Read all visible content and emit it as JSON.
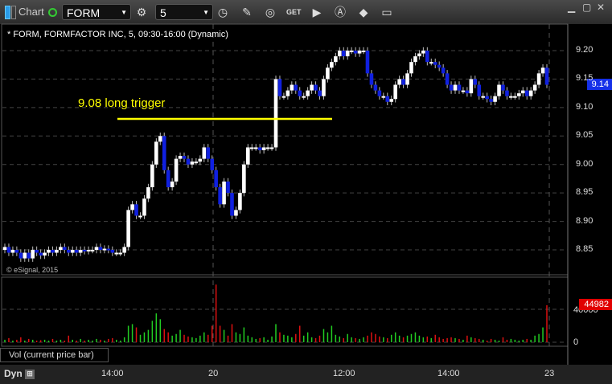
{
  "toolbar": {
    "app_label": "Chart",
    "symbol": "FORM",
    "interval": "5",
    "icons": [
      "settings-icon",
      "clock-icon",
      "pencil-icon",
      "study-icon",
      "get-icon",
      "play-icon",
      "alert-icon",
      "tag-icon",
      "comment-icon"
    ],
    "window_buttons": [
      "minimize",
      "maximize",
      "close"
    ]
  },
  "chart": {
    "title": "* FORM, FORMFACTOR INC, 5, 09:30-16:00 (Dynamic)",
    "annotation": "9.08 long trigger",
    "trigger_level": 9.08,
    "copyright": "© eSignal, 2015",
    "last_price": "9.14"
  },
  "colors": {
    "up": "#ffffff",
    "down": "#1020e0",
    "trigger": "#ffff00",
    "vol_up": "#22cc22",
    "vol_down": "#dd1111"
  },
  "volume": {
    "label": "Vol (current price bar)",
    "last": "44982",
    "ticks": [
      "40000",
      "0"
    ]
  },
  "bottom": {
    "mode": "Dyn"
  },
  "chart_data": {
    "type": "candlestick",
    "price_ticks": [
      "9.20",
      "9.15",
      "9.10",
      "9.05",
      "9.00",
      "8.95",
      "8.90",
      "8.85"
    ],
    "time_ticks": [
      "14:00",
      "20",
      "12:00",
      "14:00",
      "23"
    ],
    "ylim": [
      8.83,
      9.22
    ],
    "open_first": 8.85,
    "closes": [
      8.855,
      8.845,
      8.85,
      8.845,
      8.835,
      8.845,
      8.835,
      8.85,
      8.845,
      8.84,
      8.845,
      8.85,
      8.845,
      8.85,
      8.855,
      8.85,
      8.845,
      8.85,
      8.845,
      8.85,
      8.848,
      8.85,
      8.85,
      8.855,
      8.85,
      8.852,
      8.85,
      8.845,
      8.845,
      8.845,
      8.855,
      8.92,
      8.93,
      8.91,
      8.91,
      8.94,
      8.96,
      9.0,
      9.04,
      9.05,
      8.99,
      8.96,
      8.97,
      9.01,
      9.015,
      9.01,
      9.0,
      9.005,
      9.005,
      9.01,
      9.03,
      9.01,
      8.99,
      8.96,
      8.93,
      8.97,
      8.95,
      8.91,
      8.92,
      8.95,
      9.0,
      9.03,
      9.03,
      9.03,
      9.025,
      9.03,
      9.03,
      9.03,
      9.15,
      9.12,
      9.12,
      9.13,
      9.14,
      9.13,
      9.12,
      9.12,
      9.13,
      9.14,
      9.13,
      9.12,
      9.15,
      9.17,
      9.18,
      9.19,
      9.2,
      9.19,
      9.2,
      9.2,
      9.195,
      9.2,
      9.2,
      9.16,
      9.14,
      9.13,
      9.12,
      9.12,
      9.11,
      9.115,
      9.14,
      9.15,
      9.14,
      9.16,
      9.18,
      9.19,
      9.195,
      9.2,
      9.18,
      9.18,
      9.175,
      9.17,
      9.16,
      9.14,
      9.13,
      9.14,
      9.13,
      9.13,
      9.125,
      9.15,
      9.14,
      9.12,
      9.12,
      9.115,
      9.11,
      9.12,
      9.14,
      9.13,
      9.12,
      9.12,
      9.12,
      9.125,
      9.13,
      9.12,
      9.13,
      9.14,
      9.16,
      9.17,
      9.14
    ],
    "volumes": [
      3000,
      5000,
      2000,
      3000,
      6000,
      2000,
      4000,
      3000,
      2000,
      2500,
      3000,
      2000,
      4000,
      2000,
      3000,
      2000,
      8000,
      3000,
      2000,
      4000,
      2000,
      3000,
      2000,
      4000,
      3000,
      2000,
      4000,
      5000,
      3000,
      2000,
      6000,
      20000,
      22000,
      18000,
      9000,
      12000,
      15000,
      26000,
      35000,
      28000,
      16000,
      12000,
      8000,
      10000,
      15000,
      9000,
      7000,
      6000,
      5000,
      8000,
      12000,
      9000,
      20000,
      70000,
      20000,
      15000,
      8000,
      22000,
      12000,
      10000,
      18000,
      8000,
      6000,
      4000,
      5000,
      6000,
      3000,
      7000,
      22000,
      12000,
      9000,
      8000,
      6000,
      10000,
      20000,
      8000,
      12000,
      6000,
      5000,
      8000,
      16000,
      12000,
      20000,
      9000,
      7000,
      5000,
      10000,
      6000,
      5000,
      4000,
      6000,
      8000,
      12000,
      10000,
      7000,
      6000,
      5000,
      9000,
      12000,
      8000,
      6000,
      8000,
      10000,
      12000,
      8000,
      6000,
      7000,
      5000,
      9000,
      6000,
      4000,
      5000,
      6000,
      5000,
      4000,
      3000,
      8000,
      6000,
      5000,
      4000,
      3000,
      2000,
      4000,
      3000,
      2000,
      6000,
      3000,
      4000,
      3000,
      2000,
      3000,
      4000,
      3000,
      8000,
      10000,
      18000,
      44982
    ]
  }
}
